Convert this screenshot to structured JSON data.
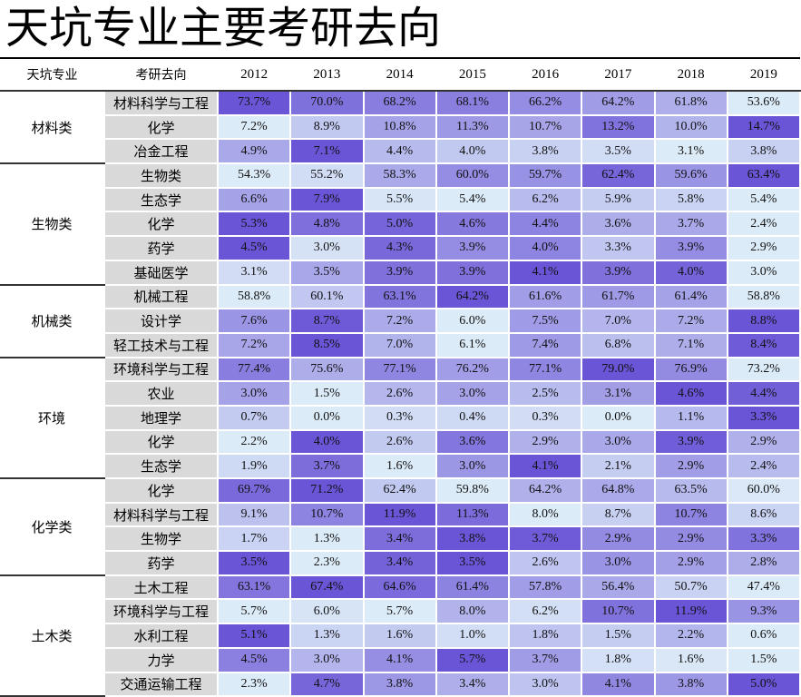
{
  "title": "天坑专业主要考研去向",
  "chart_data": {
    "type": "heatmap",
    "title": "天坑专业主要考研去向",
    "headers": [
      "天坑专业",
      "考研去向"
    ],
    "years": [
      "2012",
      "2013",
      "2014",
      "2015",
      "2016",
      "2017",
      "2018",
      "2019"
    ],
    "color_scale": {
      "low": "#dcebf8",
      "high": "#6a55d6",
      "scope": "per-row"
    },
    "groups": [
      {
        "name": "材料类",
        "rows": [
          {
            "label": "材料科学与工程",
            "values": [
              "73.7%",
              "70.0%",
              "68.2%",
              "68.1%",
              "66.2%",
              "64.2%",
              "61.8%",
              "53.6%"
            ]
          },
          {
            "label": "化学",
            "values": [
              "7.2%",
              "8.9%",
              "10.8%",
              "11.3%",
              "10.7%",
              "13.2%",
              "10.0%",
              "14.7%"
            ]
          },
          {
            "label": "冶金工程",
            "values": [
              "4.9%",
              "7.1%",
              "4.4%",
              "4.0%",
              "3.8%",
              "3.5%",
              "3.1%",
              "3.8%"
            ]
          }
        ]
      },
      {
        "name": "生物类",
        "rows": [
          {
            "label": "生物类",
            "values": [
              "54.3%",
              "55.2%",
              "58.3%",
              "60.0%",
              "59.7%",
              "62.4%",
              "59.6%",
              "63.4%"
            ]
          },
          {
            "label": "生态学",
            "values": [
              "6.6%",
              "7.9%",
              "5.5%",
              "5.4%",
              "6.2%",
              "5.9%",
              "5.8%",
              "5.4%"
            ]
          },
          {
            "label": "化学",
            "values": [
              "5.3%",
              "4.8%",
              "5.0%",
              "4.6%",
              "4.4%",
              "3.6%",
              "3.7%",
              "2.4%"
            ]
          },
          {
            "label": "药学",
            "values": [
              "4.5%",
              "3.0%",
              "4.3%",
              "3.9%",
              "4.0%",
              "3.3%",
              "3.9%",
              "2.9%"
            ]
          },
          {
            "label": "基础医学",
            "values": [
              "3.1%",
              "3.5%",
              "3.9%",
              "3.9%",
              "4.1%",
              "3.9%",
              "4.0%",
              "3.0%"
            ]
          }
        ]
      },
      {
        "name": "机械类",
        "rows": [
          {
            "label": "机械工程",
            "values": [
              "58.8%",
              "60.1%",
              "63.1%",
              "64.2%",
              "61.6%",
              "61.7%",
              "61.4%",
              "58.8%"
            ]
          },
          {
            "label": "设计学",
            "values": [
              "7.6%",
              "8.7%",
              "7.2%",
              "6.0%",
              "7.5%",
              "7.0%",
              "7.2%",
              "8.8%"
            ]
          },
          {
            "label": "轻工技术与工程",
            "values": [
              "7.2%",
              "8.5%",
              "7.0%",
              "6.1%",
              "7.4%",
              "6.8%",
              "7.1%",
              "8.4%"
            ]
          }
        ]
      },
      {
        "name": "环境",
        "rows": [
          {
            "label": "环境科学与工程",
            "values": [
              "77.4%",
              "75.6%",
              "77.1%",
              "76.2%",
              "77.1%",
              "79.0%",
              "76.9%",
              "73.2%"
            ]
          },
          {
            "label": "农业",
            "values": [
              "3.0%",
              "1.5%",
              "2.6%",
              "3.0%",
              "2.5%",
              "3.1%",
              "4.6%",
              "4.4%"
            ]
          },
          {
            "label": "地理学",
            "values": [
              "0.7%",
              "0.0%",
              "0.3%",
              "0.4%",
              "0.3%",
              "0.0%",
              "1.1%",
              "3.3%"
            ]
          },
          {
            "label": "化学",
            "values": [
              "2.2%",
              "4.0%",
              "2.6%",
              "3.6%",
              "2.9%",
              "3.0%",
              "3.9%",
              "2.9%"
            ]
          },
          {
            "label": "生态学",
            "values": [
              "1.9%",
              "3.7%",
              "1.6%",
              "3.0%",
              "4.1%",
              "2.1%",
              "2.9%",
              "2.4%"
            ]
          }
        ]
      },
      {
        "name": "化学类",
        "rows": [
          {
            "label": "化学",
            "values": [
              "69.7%",
              "71.2%",
              "62.4%",
              "59.8%",
              "64.2%",
              "64.8%",
              "63.5%",
              "60.0%"
            ]
          },
          {
            "label": "材料科学与工程",
            "values": [
              "9.1%",
              "10.7%",
              "11.9%",
              "11.3%",
              "8.0%",
              "8.7%",
              "10.7%",
              "8.6%"
            ]
          },
          {
            "label": "生物学",
            "values": [
              "1.7%",
              "1.3%",
              "3.4%",
              "3.8%",
              "3.7%",
              "2.9%",
              "2.9%",
              "3.3%"
            ]
          },
          {
            "label": "药学",
            "values": [
              "3.5%",
              "2.3%",
              "3.4%",
              "3.5%",
              "2.6%",
              "3.0%",
              "2.9%",
              "2.8%"
            ]
          }
        ]
      },
      {
        "name": "土木类",
        "rows": [
          {
            "label": "土木工程",
            "values": [
              "63.1%",
              "67.4%",
              "64.6%",
              "61.4%",
              "57.8%",
              "56.4%",
              "50.7%",
              "47.4%"
            ]
          },
          {
            "label": "环境科学与工程",
            "values": [
              "5.7%",
              "6.0%",
              "5.7%",
              "8.0%",
              "6.2%",
              "10.7%",
              "11.9%",
              "9.3%"
            ]
          },
          {
            "label": "水利工程",
            "values": [
              "5.1%",
              "1.3%",
              "1.6%",
              "1.0%",
              "1.8%",
              "1.5%",
              "2.2%",
              "0.6%"
            ]
          },
          {
            "label": "力学",
            "values": [
              "4.5%",
              "3.0%",
              "4.1%",
              "5.7%",
              "3.7%",
              "1.8%",
              "1.6%",
              "1.5%"
            ]
          },
          {
            "label": "交通运输工程",
            "values": [
              "2.3%",
              "4.7%",
              "3.8%",
              "3.4%",
              "3.0%",
              "4.1%",
              "3.8%",
              "5.0%"
            ]
          }
        ]
      }
    ]
  }
}
